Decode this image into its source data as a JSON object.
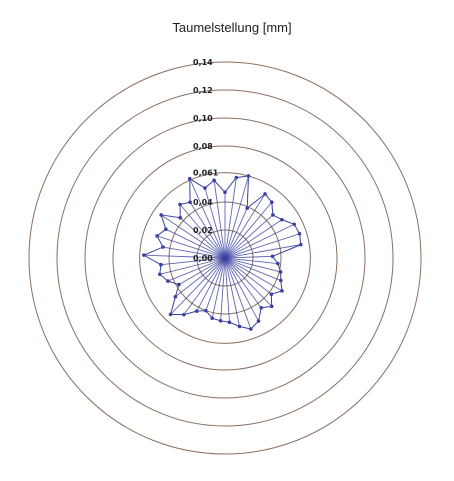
{
  "chart_data": {
    "type": "radar-polar-scatter",
    "title": "Taumelstellung [mm]",
    "radial_ticks": [
      "0,00",
      "0,02",
      "0,04",
      "0,061",
      "0,08",
      "0,10",
      "0,12",
      "0,14"
    ],
    "radial_values": [
      0,
      0.02,
      0.04,
      0.061,
      0.08,
      0.1,
      0.12,
      0.14
    ],
    "rmax": 0.14,
    "colors": {
      "rings": "#8a6f5f",
      "series": "#3a42a0",
      "text": "#222222"
    },
    "series": [
      {
        "points": [
          [
            0,
            0.047
          ],
          [
            8,
            0.058
          ],
          [
            16,
            0.061
          ],
          [
            24,
            0.039
          ],
          [
            32,
            0.054
          ],
          [
            40,
            0.052
          ],
          [
            48,
            0.046
          ],
          [
            56,
            0.049
          ],
          [
            64,
            0.055
          ],
          [
            72,
            0.056
          ],
          [
            80,
            0.055
          ],
          [
            88,
            0.034
          ],
          [
            96,
            0.038
          ],
          [
            104,
            0.041
          ],
          [
            112,
            0.043
          ],
          [
            120,
            0.047
          ],
          [
            128,
            0.042
          ],
          [
            136,
            0.048
          ],
          [
            144,
            0.044
          ],
          [
            152,
            0.051
          ],
          [
            160,
            0.054
          ],
          [
            168,
            0.05
          ],
          [
            176,
            0.046
          ],
          [
            184,
            0.045
          ],
          [
            192,
            0.044
          ],
          [
            200,
            0.04
          ],
          [
            208,
            0.043
          ],
          [
            216,
            0.05
          ],
          [
            224,
            0.056
          ],
          [
            232,
            0.045
          ],
          [
            240,
            0.038
          ],
          [
            248,
            0.044
          ],
          [
            256,
            0.048
          ],
          [
            264,
            0.046
          ],
          [
            272,
            0.058
          ],
          [
            280,
            0.045
          ],
          [
            288,
            0.051
          ],
          [
            296,
            0.047
          ],
          [
            304,
            0.055
          ],
          [
            312,
            0.043
          ],
          [
            320,
            0.05
          ],
          [
            328,
            0.047
          ],
          [
            336,
            0.062
          ],
          [
            344,
            0.052
          ],
          [
            352,
            0.056
          ]
        ]
      }
    ]
  }
}
